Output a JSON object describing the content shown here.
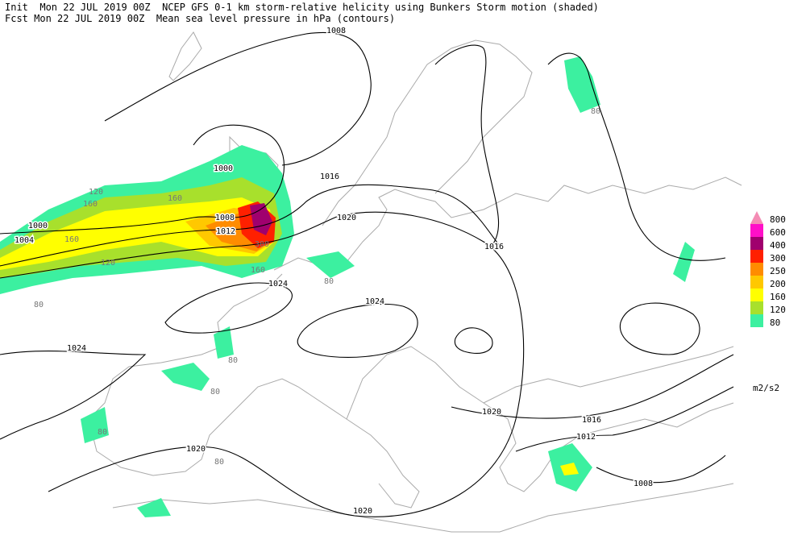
{
  "header": {
    "line1": "Init  Mon 22 JUL 2019 00Z  NCEP GFS 0-1 km storm-relative helicity using Bunkers Storm motion (shaded)",
    "line2": "Fcst Mon 22 JUL 2019 00Z  Mean sea level pressure in hPa (contours)"
  },
  "legend": {
    "levels": [
      "800",
      "600",
      "400",
      "300",
      "250",
      "200",
      "160",
      "120",
      "80"
    ],
    "colors": [
      "#f48cb4",
      "#ff10c8",
      "#a0006e",
      "#ff2000",
      "#ff8c00",
      "#ffc800",
      "#ffff00",
      "#a8e02c",
      "#3cf0a0"
    ],
    "unit": "m2/s2"
  },
  "contour_labels": [
    "1008",
    "1000",
    "1016",
    "1020",
    "1008",
    "1012",
    "1000",
    "1004",
    "1016",
    "1024",
    "1024",
    "1024",
    "1020",
    "1016",
    "1012",
    "1020",
    "1008",
    "1020"
  ],
  "shade_labels": [
    "80",
    "80",
    "80",
    "80",
    "80",
    "80",
    "80",
    "120",
    "120",
    "160",
    "160",
    "160",
    "160",
    "300"
  ]
}
